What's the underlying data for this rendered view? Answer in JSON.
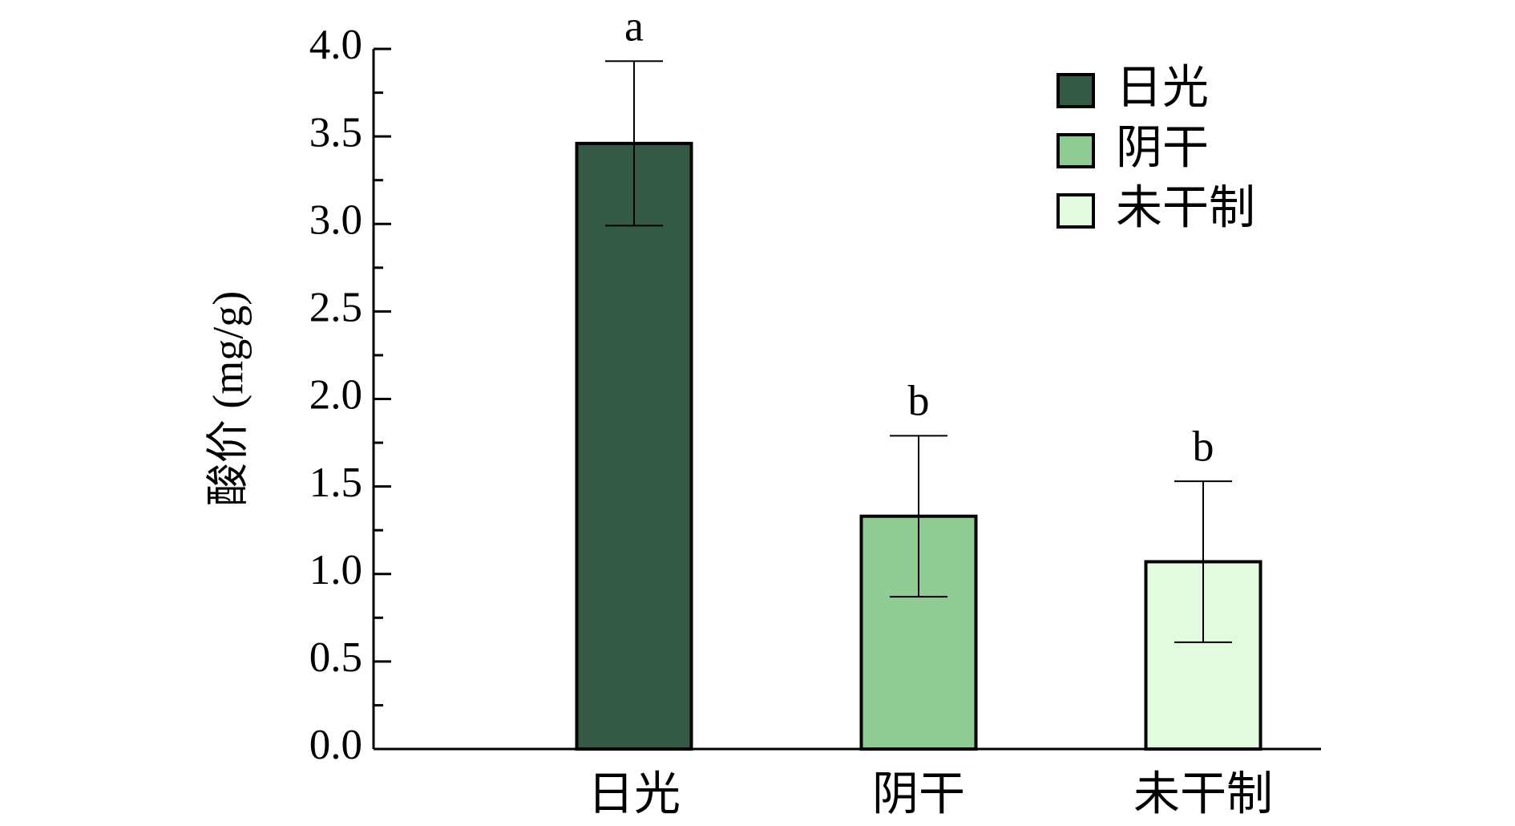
{
  "chart_data": {
    "type": "bar",
    "y_label": "酸价 (mg/g)",
    "categories": [
      "日光",
      "阴干",
      "未干制"
    ],
    "values": [
      3.46,
      1.33,
      1.07
    ],
    "errors": [
      0.47,
      0.46,
      0.46
    ],
    "significance": [
      "a",
      "b",
      "b"
    ],
    "colors": [
      "#345a45",
      "#8fcb93",
      "#e2fbdf"
    ],
    "ylim": [
      0,
      4
    ],
    "yticks": [
      {
        "value": 0,
        "label": "0.0"
      },
      0.5,
      {
        "value": 1,
        "label": "1.0"
      },
      1.5,
      {
        "value": 2,
        "label": "2.0"
      },
      2.5,
      {
        "value": 3,
        "label": "3.0"
      },
      3.5,
      {
        "value": 4,
        "label": "4.0"
      }
    ],
    "minor_yticks": [
      0.25,
      0.75,
      1.25,
      1.75,
      2.25,
      2.75,
      3.25,
      3.75
    ],
    "legend": "upper right"
  }
}
